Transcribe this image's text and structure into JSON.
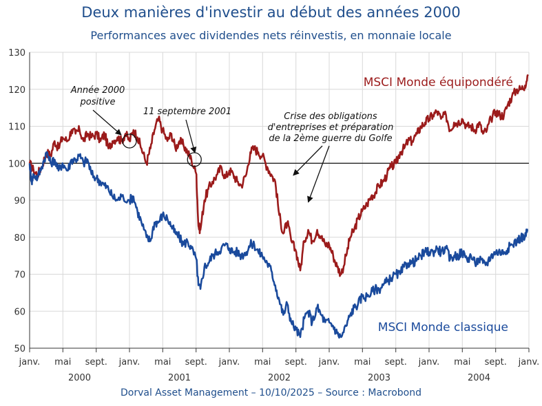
{
  "chart_data": {
    "type": "line",
    "title": "Deux manières d'investir au début des années 2000",
    "subtitle": "Performances avec dividendes nets réinvestis, en monnaie locale",
    "ylim": [
      50,
      130
    ],
    "yticks": [
      50,
      60,
      70,
      80,
      90,
      100,
      110,
      120,
      130
    ],
    "xlim": [
      2000.0,
      2005.0
    ],
    "x_tick_labels": [
      {
        "x": 2000.0,
        "label": "janv."
      },
      {
        "x": 2000.333,
        "label": "mai"
      },
      {
        "x": 2000.667,
        "label": "sept."
      },
      {
        "x": 2001.0,
        "label": "janv."
      },
      {
        "x": 2001.333,
        "label": "mai"
      },
      {
        "x": 2001.667,
        "label": "sept."
      },
      {
        "x": 2002.0,
        "label": "janv."
      },
      {
        "x": 2002.333,
        "label": "mai"
      },
      {
        "x": 2002.667,
        "label": "sept."
      },
      {
        "x": 2003.0,
        "label": "janv."
      },
      {
        "x": 2003.333,
        "label": "mai"
      },
      {
        "x": 2003.667,
        "label": "sept."
      },
      {
        "x": 2004.0,
        "label": "janv."
      },
      {
        "x": 2004.333,
        "label": "mai"
      },
      {
        "x": 2004.667,
        "label": "sept."
      },
      {
        "x": 2005.0,
        "label": "janv."
      }
    ],
    "year_labels": [
      {
        "x": 2000.5,
        "label": "2000"
      },
      {
        "x": 2001.5,
        "label": "2001"
      },
      {
        "x": 2002.5,
        "label": "2002"
      },
      {
        "x": 2003.5,
        "label": "2003"
      },
      {
        "x": 2004.5,
        "label": "2004"
      }
    ],
    "reference_line": 100,
    "series": [
      {
        "name": "MSCI Monde équipondéré",
        "color": "#9b1b1b",
        "points": [
          [
            2000.0,
            100
          ],
          [
            2000.04,
            98
          ],
          [
            2000.08,
            97
          ],
          [
            2000.12,
            99
          ],
          [
            2000.17,
            103
          ],
          [
            2000.21,
            102
          ],
          [
            2000.25,
            106
          ],
          [
            2000.29,
            104
          ],
          [
            2000.33,
            107
          ],
          [
            2000.38,
            106
          ],
          [
            2000.42,
            109
          ],
          [
            2000.46,
            108
          ],
          [
            2000.5,
            109
          ],
          [
            2000.54,
            106
          ],
          [
            2000.58,
            108
          ],
          [
            2000.62,
            107
          ],
          [
            2000.67,
            108
          ],
          [
            2000.71,
            106
          ],
          [
            2000.75,
            108
          ],
          [
            2000.79,
            104
          ],
          [
            2000.83,
            106
          ],
          [
            2000.88,
            107
          ],
          [
            2000.92,
            106
          ],
          [
            2000.96,
            108
          ],
          [
            2001.0,
            106
          ],
          [
            2001.04,
            109
          ],
          [
            2001.08,
            107
          ],
          [
            2001.12,
            104
          ],
          [
            2001.17,
            100
          ],
          [
            2001.21,
            104
          ],
          [
            2001.25,
            109
          ],
          [
            2001.29,
            112
          ],
          [
            2001.33,
            109
          ],
          [
            2001.38,
            106
          ],
          [
            2001.42,
            108
          ],
          [
            2001.46,
            104
          ],
          [
            2001.5,
            106
          ],
          [
            2001.54,
            105
          ],
          [
            2001.58,
            103
          ],
          [
            2001.62,
            101
          ],
          [
            2001.67,
            97
          ],
          [
            2001.69,
            83
          ],
          [
            2001.71,
            82
          ],
          [
            2001.75,
            90
          ],
          [
            2001.79,
            93
          ],
          [
            2001.83,
            95
          ],
          [
            2001.88,
            97
          ],
          [
            2001.92,
            99
          ],
          [
            2001.96,
            96
          ],
          [
            2002.0,
            98
          ],
          [
            2002.04,
            97
          ],
          [
            2002.08,
            95
          ],
          [
            2002.12,
            94
          ],
          [
            2002.17,
            97
          ],
          [
            2002.21,
            103
          ],
          [
            2002.25,
            104
          ],
          [
            2002.29,
            103
          ],
          [
            2002.33,
            102
          ],
          [
            2002.38,
            99
          ],
          [
            2002.42,
            97
          ],
          [
            2002.46,
            95
          ],
          [
            2002.5,
            86
          ],
          [
            2002.54,
            81
          ],
          [
            2002.58,
            84
          ],
          [
            2002.62,
            79
          ],
          [
            2002.67,
            76
          ],
          [
            2002.71,
            71
          ],
          [
            2002.75,
            79
          ],
          [
            2002.79,
            82
          ],
          [
            2002.83,
            79
          ],
          [
            2002.88,
            82
          ],
          [
            2002.92,
            80
          ],
          [
            2002.96,
            78
          ],
          [
            2003.0,
            78
          ],
          [
            2003.04,
            75
          ],
          [
            2003.08,
            72
          ],
          [
            2003.12,
            70
          ],
          [
            2003.17,
            75
          ],
          [
            2003.21,
            80
          ],
          [
            2003.25,
            82
          ],
          [
            2003.29,
            85
          ],
          [
            2003.33,
            87
          ],
          [
            2003.38,
            89
          ],
          [
            2003.42,
            91
          ],
          [
            2003.46,
            92
          ],
          [
            2003.5,
            94
          ],
          [
            2003.54,
            95
          ],
          [
            2003.58,
            97
          ],
          [
            2003.62,
            99
          ],
          [
            2003.67,
            100
          ],
          [
            2003.71,
            103
          ],
          [
            2003.75,
            104
          ],
          [
            2003.79,
            106
          ],
          [
            2003.83,
            106
          ],
          [
            2003.88,
            108
          ],
          [
            2003.92,
            110
          ],
          [
            2003.96,
            111
          ],
          [
            2004.0,
            112
          ],
          [
            2004.04,
            113
          ],
          [
            2004.08,
            114
          ],
          [
            2004.12,
            112
          ],
          [
            2004.17,
            113
          ],
          [
            2004.21,
            109
          ],
          [
            2004.25,
            111
          ],
          [
            2004.29,
            111
          ],
          [
            2004.33,
            112
          ],
          [
            2004.38,
            110
          ],
          [
            2004.42,
            110
          ],
          [
            2004.46,
            109
          ],
          [
            2004.5,
            111
          ],
          [
            2004.54,
            108
          ],
          [
            2004.58,
            109
          ],
          [
            2004.62,
            112
          ],
          [
            2004.67,
            114
          ],
          [
            2004.71,
            113
          ],
          [
            2004.75,
            113
          ],
          [
            2004.79,
            116
          ],
          [
            2004.83,
            118
          ],
          [
            2004.88,
            120
          ],
          [
            2004.92,
            120
          ],
          [
            2004.96,
            121
          ],
          [
            2004.99,
            124
          ]
        ]
      },
      {
        "name": "MSCI Monde classique",
        "color": "#1a4a9c",
        "points": [
          [
            2000.0,
            100
          ],
          [
            2000.02,
            95
          ],
          [
            2000.04,
            97
          ],
          [
            2000.08,
            96
          ],
          [
            2000.12,
            99
          ],
          [
            2000.17,
            103
          ],
          [
            2000.21,
            100
          ],
          [
            2000.25,
            101
          ],
          [
            2000.29,
            98
          ],
          [
            2000.33,
            100
          ],
          [
            2000.38,
            98
          ],
          [
            2000.42,
            101
          ],
          [
            2000.46,
            101
          ],
          [
            2000.5,
            102
          ],
          [
            2000.54,
            100
          ],
          [
            2000.58,
            101
          ],
          [
            2000.62,
            97
          ],
          [
            2000.67,
            96
          ],
          [
            2000.71,
            95
          ],
          [
            2000.75,
            94
          ],
          [
            2000.79,
            93
          ],
          [
            2000.83,
            91
          ],
          [
            2000.88,
            90
          ],
          [
            2000.92,
            91
          ],
          [
            2001.0,
            90
          ],
          [
            2001.04,
            91
          ],
          [
            2001.08,
            87
          ],
          [
            2001.12,
            84
          ],
          [
            2001.17,
            80
          ],
          [
            2001.21,
            79
          ],
          [
            2001.25,
            84
          ],
          [
            2001.29,
            84
          ],
          [
            2001.33,
            86
          ],
          [
            2001.38,
            85
          ],
          [
            2001.42,
            83
          ],
          [
            2001.46,
            81
          ],
          [
            2001.5,
            80
          ],
          [
            2001.54,
            78
          ],
          [
            2001.58,
            79
          ],
          [
            2001.62,
            77
          ],
          [
            2001.67,
            74
          ],
          [
            2001.69,
            67
          ],
          [
            2001.71,
            66
          ],
          [
            2001.75,
            72
          ],
          [
            2001.79,
            73
          ],
          [
            2001.83,
            75
          ],
          [
            2001.88,
            76
          ],
          [
            2001.92,
            77
          ],
          [
            2001.96,
            78
          ],
          [
            2002.0,
            77
          ],
          [
            2002.04,
            76
          ],
          [
            2002.08,
            76
          ],
          [
            2002.12,
            75
          ],
          [
            2002.17,
            76
          ],
          [
            2002.21,
            78
          ],
          [
            2002.25,
            78
          ],
          [
            2002.29,
            76
          ],
          [
            2002.33,
            75
          ],
          [
            2002.38,
            73
          ],
          [
            2002.42,
            71
          ],
          [
            2002.46,
            67
          ],
          [
            2002.5,
            63
          ],
          [
            2002.54,
            59
          ],
          [
            2002.58,
            62
          ],
          [
            2002.62,
            57
          ],
          [
            2002.67,
            55
          ],
          [
            2002.71,
            53
          ],
          [
            2002.75,
            58
          ],
          [
            2002.79,
            60
          ],
          [
            2002.83,
            57
          ],
          [
            2002.88,
            61
          ],
          [
            2002.92,
            59
          ],
          [
            2002.96,
            57
          ],
          [
            2003.0,
            57
          ],
          [
            2003.04,
            56
          ],
          [
            2003.08,
            54
          ],
          [
            2003.12,
            53
          ],
          [
            2003.17,
            56
          ],
          [
            2003.21,
            59
          ],
          [
            2003.25,
            61
          ],
          [
            2003.29,
            62
          ],
          [
            2003.33,
            64
          ],
          [
            2003.38,
            64
          ],
          [
            2003.42,
            65
          ],
          [
            2003.46,
            66
          ],
          [
            2003.5,
            66
          ],
          [
            2003.54,
            67
          ],
          [
            2003.58,
            68
          ],
          [
            2003.62,
            69
          ],
          [
            2003.67,
            70
          ],
          [
            2003.71,
            70
          ],
          [
            2003.75,
            72
          ],
          [
            2003.79,
            73
          ],
          [
            2003.83,
            73
          ],
          [
            2003.88,
            74
          ],
          [
            2003.92,
            75
          ],
          [
            2003.96,
            76
          ],
          [
            2004.0,
            76
          ],
          [
            2004.04,
            76
          ],
          [
            2004.08,
            77
          ],
          [
            2004.12,
            76
          ],
          [
            2004.17,
            77
          ],
          [
            2004.21,
            74
          ],
          [
            2004.25,
            75
          ],
          [
            2004.29,
            75
          ],
          [
            2004.33,
            76
          ],
          [
            2004.38,
            74
          ],
          [
            2004.42,
            75
          ],
          [
            2004.46,
            73
          ],
          [
            2004.5,
            74
          ],
          [
            2004.54,
            73
          ],
          [
            2004.58,
            73
          ],
          [
            2004.62,
            75
          ],
          [
            2004.67,
            76
          ],
          [
            2004.71,
            76
          ],
          [
            2004.75,
            76
          ],
          [
            2004.79,
            77
          ],
          [
            2004.83,
            78
          ],
          [
            2004.88,
            79
          ],
          [
            2004.92,
            80
          ],
          [
            2004.96,
            80
          ],
          [
            2004.99,
            82
          ]
        ]
      }
    ],
    "annotations": [
      {
        "lines": [
          "Année 2000",
          "positive"
        ],
        "target_x": 2001.0,
        "target_y": 106
      },
      {
        "lines": [
          "11 septembre 2001"
        ],
        "target_x": 2001.65,
        "target_y": 101
      },
      {
        "lines": [
          "Crise des obligations",
          "d'entreprises et préparation",
          "de la 2ème guerre du Golfe"
        ],
        "targets": [
          [
            2002.62,
            96
          ],
          [
            2002.79,
            88
          ]
        ]
      }
    ]
  },
  "footer": "Dorval Asset Management – 10/10/2025 –   Source : Macrobond"
}
